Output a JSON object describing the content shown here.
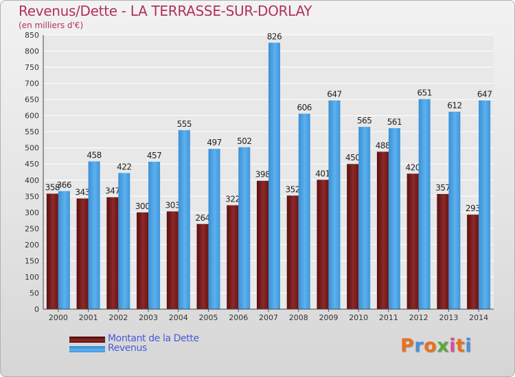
{
  "chart_data": {
    "type": "bar",
    "title": "Revenus/Dette - LA TERRASSE-SUR-DORLAY",
    "subtitle": "(en milliers d'€)",
    "categories": [
      "2000",
      "2001",
      "2002",
      "2003",
      "2004",
      "2005",
      "2006",
      "2007",
      "2008",
      "2009",
      "2010",
      "2011",
      "2012",
      "2013",
      "2014"
    ],
    "series": [
      {
        "name": "Montant de la Dette",
        "color": "#7a1e1e",
        "values": [
          358,
          343,
          347,
          300,
          303,
          264,
          322,
          398,
          352,
          401,
          450,
          488,
          420,
          357,
          293
        ]
      },
      {
        "name": "Revenus",
        "color": "#4aa3e6",
        "values": [
          366,
          458,
          422,
          457,
          555,
          497,
          502,
          826,
          606,
          647,
          565,
          561,
          651,
          612,
          647
        ]
      }
    ],
    "ylim": [
      0,
      850
    ],
    "ytick_step": 50,
    "grid": true,
    "legend_position": "bottom-left"
  },
  "brand": {
    "text": "Proxiti",
    "letter_colors": [
      "#e9701d",
      "#4a90d9",
      "#e9701d",
      "#5aa83c",
      "#d94c9a",
      "#e9701d",
      "#4a90d9"
    ]
  },
  "colors": {
    "title": "#b03060",
    "grid": "#ffffff",
    "axis": "#444444"
  }
}
